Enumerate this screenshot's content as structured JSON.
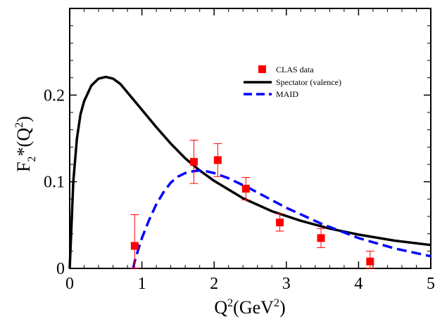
{
  "chart_data": {
    "type": "line",
    "title": "",
    "xlabel": {
      "base": "Q",
      "sup": "2",
      "unit_open": "(GeV",
      "unit_sup": "2",
      "unit_close": ")"
    },
    "ylabel": {
      "base": "F",
      "sub": "2",
      "mid": "*(Q",
      "sup": "2",
      "close": ")"
    },
    "xlim": [
      0,
      5
    ],
    "ylim": [
      0,
      0.3
    ],
    "x_ticks": [
      0,
      1,
      2,
      3,
      4,
      5
    ],
    "x_tick_labels": [
      "0",
      "1",
      "2",
      "3",
      "4",
      "5"
    ],
    "y_ticks": [
      0,
      0.1,
      0.2
    ],
    "y_tick_labels": [
      "0",
      "0.1",
      "0.2"
    ],
    "grid": false,
    "legend_position": "top-right",
    "series": [
      {
        "name": "CLAS data",
        "kind": "scatter_errorbars",
        "color": "#ff0000",
        "x": [
          0.9,
          1.72,
          2.05,
          2.44,
          2.91,
          3.48,
          4.16
        ],
        "y": [
          0.026,
          0.123,
          0.125,
          0.092,
          0.053,
          0.035,
          0.008
        ],
        "err": [
          0.036,
          0.025,
          0.019,
          0.013,
          0.01,
          0.011,
          0.012
        ]
      },
      {
        "name": "Spectator (valence)",
        "kind": "line",
        "color": "#000000",
        "style": "solid",
        "x": [
          0.0,
          0.02,
          0.05,
          0.1,
          0.15,
          0.2,
          0.3,
          0.4,
          0.5,
          0.6,
          0.7,
          0.8,
          1.0,
          1.2,
          1.4,
          1.6,
          1.8,
          2.0,
          2.4,
          2.8,
          3.2,
          3.6,
          4.0,
          4.5,
          5.0
        ],
        "y": [
          0.0,
          0.04,
          0.1,
          0.15,
          0.178,
          0.193,
          0.211,
          0.219,
          0.221,
          0.219,
          0.213,
          0.203,
          0.183,
          0.163,
          0.144,
          0.127,
          0.113,
          0.101,
          0.081,
          0.066,
          0.055,
          0.046,
          0.039,
          0.032,
          0.027
        ]
      },
      {
        "name": "MAID",
        "kind": "line",
        "color": "#0000ff",
        "style": "dashed",
        "x": [
          0.88,
          0.9,
          0.95,
          1.0,
          1.1,
          1.2,
          1.3,
          1.4,
          1.5,
          1.6,
          1.7,
          1.8,
          1.9,
          2.0,
          2.2,
          2.5,
          3.0,
          3.5,
          4.0,
          4.5,
          5.0
        ],
        "y": [
          0.0,
          0.008,
          0.022,
          0.035,
          0.056,
          0.074,
          0.088,
          0.099,
          0.106,
          0.11,
          0.112,
          0.113,
          0.112,
          0.11,
          0.104,
          0.092,
          0.07,
          0.051,
          0.035,
          0.023,
          0.014
        ]
      }
    ]
  }
}
